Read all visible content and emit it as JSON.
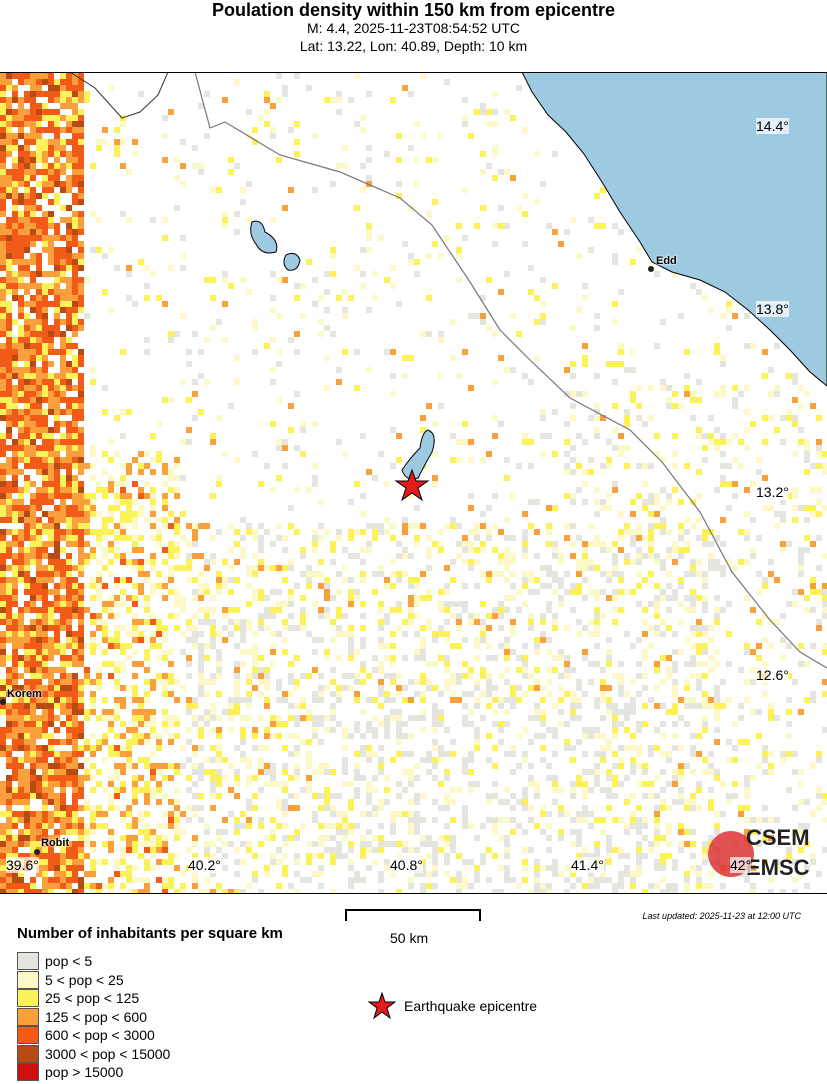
{
  "header": {
    "title": "Poulation density within 150 km from epicentre",
    "line1": "M: 4.4,  2025-11-23T08:54:52 UTC",
    "line2": "Lat: 13.22, Lon: 40.89, Depth: 10 km"
  },
  "map": {
    "colors": {
      "sea": "#9ecae1",
      "border": "#777777",
      "epicentre": "#e41a1c"
    },
    "lat_labels": [
      "14.4°",
      "13.8°",
      "13.2°",
      "12.6°"
    ],
    "lon_labels": [
      "39.6°",
      "40.2°",
      "40.8°",
      "41.4°",
      "42°"
    ],
    "cities": [
      {
        "name": "Edd"
      },
      {
        "name": "Korem"
      },
      {
        "name": "Robit"
      }
    ],
    "logo": {
      "line1": "CSEM",
      "line2": "EMSC"
    }
  },
  "scale": {
    "label": "50 km"
  },
  "updated": "Last updated: 2025-11-23 at 12:00 UTC",
  "legend": {
    "title": "Number of inhabitants per square km",
    "items": [
      {
        "label": "pop < 5",
        "color": "#e5e5e0"
      },
      {
        "label": "5 < pop < 25",
        "color": "#fdf8c8"
      },
      {
        "label": "25 < pop < 125",
        "color": "#fbf25a"
      },
      {
        "label": "125 < pop < 600",
        "color": "#f9a03c"
      },
      {
        "label": "600 < pop < 3000",
        "color": "#f25a18"
      },
      {
        "label": "3000 < pop < 15000",
        "color": "#b84a14"
      },
      {
        "label": "pop > 15000",
        "color": "#d01010"
      }
    ],
    "epicentre_label": "Earthquake epicentre"
  }
}
